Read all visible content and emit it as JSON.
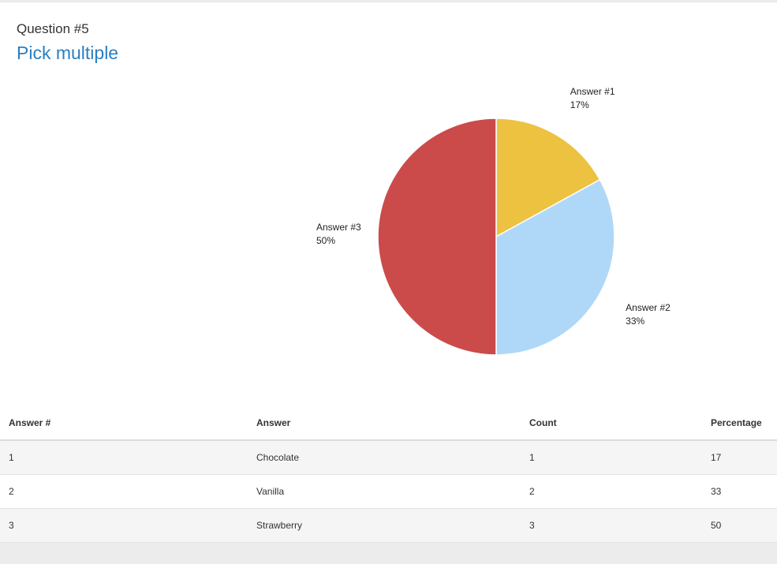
{
  "question": {
    "number_label": "Question #5",
    "title": "Pick multiple"
  },
  "chart_data": {
    "type": "pie",
    "title": "",
    "categories": [
      "Answer #1",
      "Answer #2",
      "Answer #3"
    ],
    "values": [
      17,
      33,
      50
    ],
    "value_labels": [
      "17%",
      "33%",
      "50%"
    ],
    "colors": [
      "#edc240",
      "#afd8f8",
      "#cb4b4b"
    ]
  },
  "table": {
    "headers": [
      "Answer #",
      "Answer",
      "Count",
      "Percentage"
    ],
    "rows": [
      {
        "num": "1",
        "answer": "Chocolate",
        "count": "1",
        "percentage": "17"
      },
      {
        "num": "2",
        "answer": "Vanilla",
        "count": "2",
        "percentage": "33"
      },
      {
        "num": "3",
        "answer": "Strawberry",
        "count": "3",
        "percentage": "50"
      }
    ]
  }
}
